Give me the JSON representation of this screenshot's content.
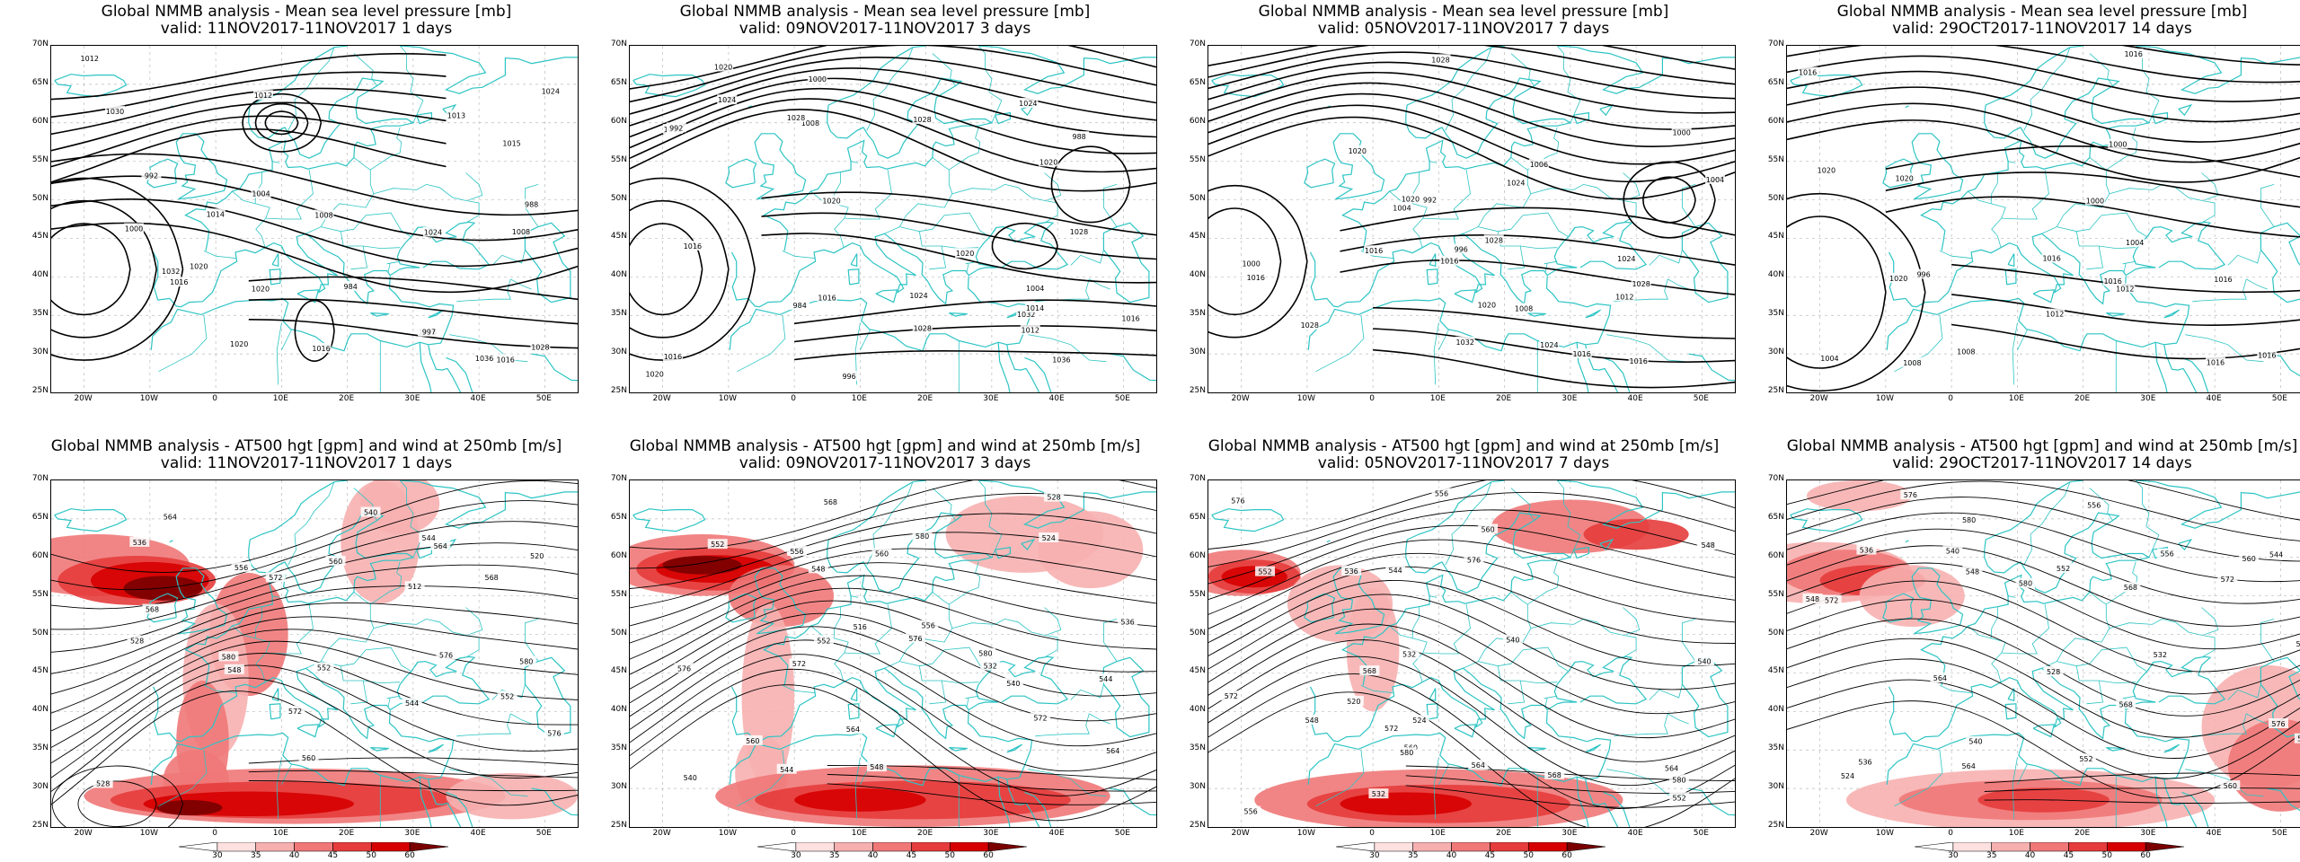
{
  "panels": [
    {
      "title": "Global NMMB analysis - Mean sea level pressure [mb]",
      "valid": "valid: 11NOV2017-11NOV2017  1 days",
      "kind": "mslp"
    },
    {
      "title": "Global NMMB analysis - Mean sea level pressure [mb]",
      "valid": "valid: 09NOV2017-11NOV2017  3 days",
      "kind": "mslp"
    },
    {
      "title": "Global NMMB analysis - Mean sea level pressure [mb]",
      "valid": "valid: 05NOV2017-11NOV2017  7 days",
      "kind": "mslp"
    },
    {
      "title": "Global NMMB analysis - Mean sea level pressure [mb]",
      "valid": "valid: 29OCT2017-11NOV2017  14 days",
      "kind": "mslp"
    },
    {
      "title": "Global NMMB analysis - AT500 hgt [gpm] and wind at 250mb [m/s]",
      "valid": "valid: 11NOV2017-11NOV2017  1 days",
      "kind": "z500"
    },
    {
      "title": "Global NMMB analysis - AT500 hgt [gpm] and wind at 250mb [m/s]",
      "valid": "valid: 09NOV2017-11NOV2017  3 days",
      "kind": "z500"
    },
    {
      "title": "Global NMMB analysis - AT500 hgt [gpm] and wind at 250mb [m/s]",
      "valid": "valid: 05NOV2017-11NOV2017  7 days",
      "kind": "z500"
    },
    {
      "title": "Global NMMB analysis - AT500 hgt [gpm] and wind at 250mb [m/s]",
      "valid": "valid: 29OCT2017-11NOV2017  14 days",
      "kind": "z500"
    }
  ],
  "lat_labels": [
    "70N",
    "65N",
    "60N",
    "55N",
    "50N",
    "45N",
    "40N",
    "35N",
    "30N",
    "25N"
  ],
  "lon_labels": [
    "20W",
    "10W",
    "0",
    "10E",
    "20E",
    "30E",
    "40E",
    "50E"
  ],
  "colorbar_ticks": [
    "30",
    "35",
    "40",
    "45",
    "50",
    "60"
  ],
  "colors": {
    "coast": "#2ec4c4",
    "contour": "#000000",
    "grid": "#bbbbbb",
    "wind": [
      "#fde0e0",
      "#f7b0b0",
      "#f07878",
      "#e63c3c",
      "#d60000",
      "#7a0000"
    ]
  },
  "mslp_labels": [
    [
      "1016",
      "1013",
      "1015",
      "1020",
      "1016",
      "1016",
      "1036",
      "1032",
      "1028",
      "1024",
      "1030",
      "1024",
      "1008",
      "1012",
      "1014",
      "1016",
      "1020",
      "1020",
      "984",
      "988",
      "992",
      "997",
      "1000",
      "1004",
      "1008",
      "1012"
    ],
    [
      "1016",
      "1016",
      "1020",
      "1024",
      "1028",
      "1032",
      "1036",
      "1028",
      "1024",
      "1020",
      "1016",
      "1000",
      "1004",
      "1008",
      "1012",
      "1016",
      "1020",
      "1020",
      "1024",
      "1028",
      "1028",
      "1014",
      "1016",
      "1020",
      "984",
      "988",
      "992",
      "996"
    ],
    [
      "992",
      "996",
      "1000",
      "1004",
      "1008",
      "1012",
      "1016",
      "1020",
      "1024",
      "1028",
      "1028",
      "1032",
      "1024",
      "1020",
      "1016",
      "1016",
      "1016",
      "1016",
      "1020",
      "1024",
      "1028",
      "1028",
      "1000",
      "1004",
      "1006"
    ],
    [
      "996",
      "1000",
      "1004",
      "1008",
      "1012",
      "1016",
      "1016",
      "1020",
      "1016",
      "1016",
      "1016",
      "1016",
      "1020",
      "1020",
      "1016",
      "1000",
      "1004",
      "1008",
      "1012"
    ]
  ],
  "z500_labels": [
    [
      "528",
      "512",
      "520",
      "536",
      "544",
      "552",
      "556",
      "560",
      "564",
      "568",
      "572",
      "576",
      "580",
      "528",
      "540",
      "544",
      "548",
      "552",
      "560",
      "564",
      "568",
      "572",
      "576",
      "580"
    ],
    [
      "516",
      "524",
      "532",
      "536",
      "540",
      "544",
      "548",
      "552",
      "556",
      "560",
      "564",
      "568",
      "572",
      "576",
      "580",
      "528",
      "540",
      "544",
      "548",
      "552",
      "556",
      "560",
      "564",
      "572",
      "576",
      "580"
    ],
    [
      "520",
      "524",
      "528",
      "532",
      "536",
      "540",
      "544",
      "548",
      "552",
      "556",
      "560",
      "564",
      "568",
      "572",
      "576",
      "580",
      "532",
      "540",
      "548",
      "552",
      "556",
      "560",
      "564",
      "568",
      "572",
      "576",
      "580"
    ],
    [
      "524",
      "528",
      "532",
      "536",
      "540",
      "544",
      "548",
      "552",
      "556",
      "560",
      "564",
      "568",
      "572",
      "576",
      "580",
      "532",
      "536",
      "540",
      "544",
      "548",
      "552",
      "556",
      "560",
      "564",
      "568",
      "572",
      "576",
      "580"
    ]
  ]
}
